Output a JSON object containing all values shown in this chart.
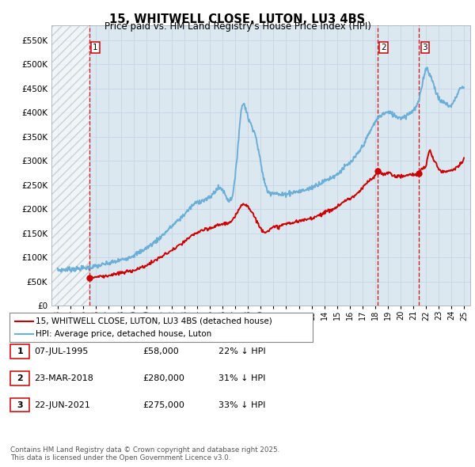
{
  "title": "15, WHITWELL CLOSE, LUTON, LU3 4BS",
  "subtitle": "Price paid vs. HM Land Registry's House Price Index (HPI)",
  "legend_property": "15, WHITWELL CLOSE, LUTON, LU3 4BS (detached house)",
  "legend_hpi": "HPI: Average price, detached house, Luton",
  "sale_points": [
    {
      "num": 1,
      "date": "07-JUL-1995",
      "price": 58000,
      "hpi_rel": "22% ↓ HPI",
      "x": 1995.51
    },
    {
      "num": 2,
      "date": "23-MAR-2018",
      "price": 280000,
      "hpi_rel": "31% ↓ HPI",
      "x": 2018.22
    },
    {
      "num": 3,
      "date": "22-JUN-2021",
      "price": 275000,
      "hpi_rel": "33% ↓ HPI",
      "x": 2021.47
    }
  ],
  "footer": "Contains HM Land Registry data © Crown copyright and database right 2025.\nThis data is licensed under the Open Government Licence v3.0.",
  "xlim": [
    1992.5,
    2025.5
  ],
  "ylim": [
    0,
    580000
  ],
  "yticks": [
    0,
    50000,
    100000,
    150000,
    200000,
    250000,
    300000,
    350000,
    400000,
    450000,
    500000,
    550000
  ],
  "ytick_labels": [
    "£0",
    "£50K",
    "£100K",
    "£150K",
    "£200K",
    "£250K",
    "£300K",
    "£350K",
    "£400K",
    "£450K",
    "£500K",
    "£550K"
  ],
  "hpi_color": "#6baed6",
  "sale_color": "#cc0000",
  "grid_color": "#c8d8e8",
  "background_chart": "#dce8f0",
  "background_hatch_end": 1995.51,
  "hpi_curve_x": [
    1993.0,
    1994.0,
    1995.0,
    1996.0,
    1997.0,
    1998.0,
    1999.0,
    2000.0,
    2001.0,
    2002.0,
    2003.0,
    2004.0,
    2005.0,
    2006.0,
    2007.0,
    2007.5,
    2008.0,
    2008.5,
    2009.0,
    2009.5,
    2010.0,
    2010.5,
    2011.0,
    2011.5,
    2012.0,
    2012.5,
    2013.0,
    2013.5,
    2014.0,
    2014.5,
    2015.0,
    2015.5,
    2016.0,
    2016.5,
    2017.0,
    2017.5,
    2018.0,
    2018.5,
    2019.0,
    2019.5,
    2020.0,
    2020.5,
    2021.0,
    2021.5,
    2021.8,
    2022.0,
    2022.3,
    2022.6,
    2023.0,
    2023.5,
    2024.0,
    2024.5,
    2025.0
  ],
  "hpi_curve_y": [
    74000,
    76000,
    78000,
    82000,
    88000,
    95000,
    105000,
    120000,
    140000,
    165000,
    190000,
    215000,
    225000,
    240000,
    270000,
    410000,
    390000,
    360000,
    295000,
    240000,
    235000,
    230000,
    232000,
    235000,
    237000,
    240000,
    245000,
    252000,
    258000,
    265000,
    272000,
    285000,
    295000,
    310000,
    330000,
    355000,
    380000,
    395000,
    400000,
    395000,
    390000,
    395000,
    405000,
    430000,
    470000,
    490000,
    480000,
    460000,
    430000,
    420000,
    415000,
    440000,
    450000
  ],
  "prop_curve_x": [
    1995.51,
    1996.0,
    1997.0,
    1998.0,
    1999.0,
    2000.0,
    2001.0,
    2002.0,
    2003.0,
    2004.0,
    2005.0,
    2006.0,
    2007.0,
    2007.5,
    2008.0,
    2008.5,
    2009.0,
    2009.5,
    2010.0,
    2010.5,
    2011.0,
    2011.5,
    2012.0,
    2012.5,
    2013.0,
    2013.5,
    2014.0,
    2014.5,
    2015.0,
    2015.5,
    2016.0,
    2016.5,
    2017.0,
    2017.5,
    2018.0,
    2018.22,
    2018.5,
    2019.0,
    2019.5,
    2020.0,
    2020.5,
    2021.0,
    2021.47,
    2021.8,
    2022.0,
    2022.3,
    2022.5,
    2022.8,
    2023.0,
    2023.5,
    2024.0,
    2024.5,
    2025.0
  ],
  "prop_curve_y": [
    58000,
    60000,
    63000,
    68000,
    74000,
    84000,
    99000,
    115000,
    133000,
    152000,
    160000,
    170000,
    185000,
    210000,
    205000,
    185000,
    160000,
    155000,
    162000,
    165000,
    170000,
    172000,
    175000,
    178000,
    182000,
    187000,
    193000,
    198000,
    205000,
    215000,
    222000,
    230000,
    243000,
    258000,
    270000,
    280000,
    275000,
    275000,
    270000,
    268000,
    270000,
    272000,
    275000,
    285000,
    290000,
    320000,
    310000,
    295000,
    285000,
    278000,
    282000,
    288000,
    305000
  ]
}
